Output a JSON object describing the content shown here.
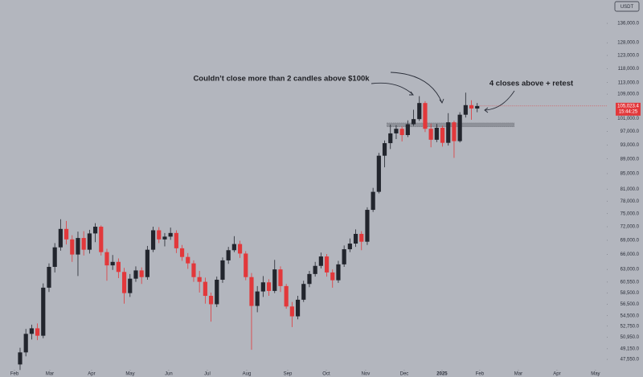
{
  "chart_data": {
    "type": "candlestick",
    "currency": "USDT",
    "scale": "log",
    "up_color": "#22252d",
    "down_color": "#e2383b",
    "annotations": [
      "Couldn’t close more than 2 candles above $100k",
      "4 closes above + retest"
    ],
    "ylim": [
      46260,
      146300
    ],
    "yticks": [
      {
        "value": 136000,
        "label": "136,000.0"
      },
      {
        "value": 128000,
        "label": "128,000.0"
      },
      {
        "value": 123000,
        "label": "123,000.0"
      },
      {
        "value": 118000,
        "label": "118,000.0"
      },
      {
        "value": 113000,
        "label": "113,000.0"
      },
      {
        "value": 109000,
        "label": "109,000.0"
      },
      {
        "value": 101000,
        "label": "101,000.0"
      },
      {
        "value": 97000,
        "label": "97,000.0"
      },
      {
        "value": 93000,
        "label": "93,000.0"
      },
      {
        "value": 89000,
        "label": "89,000.0"
      },
      {
        "value": 85000,
        "label": "85,000.0"
      },
      {
        "value": 81000,
        "label": "81,000.0"
      },
      {
        "value": 78000,
        "label": "78,000.0"
      },
      {
        "value": 75000,
        "label": "75,000.0"
      },
      {
        "value": 72000,
        "label": "72,000.0"
      },
      {
        "value": 69000,
        "label": "69,000.0"
      },
      {
        "value": 66000,
        "label": "66,000.0"
      },
      {
        "value": 63000,
        "label": "63,000.0"
      },
      {
        "value": 60550,
        "label": "60,550.0"
      },
      {
        "value": 58500,
        "label": "58,500.0"
      },
      {
        "value": 56500,
        "label": "56,500.0"
      },
      {
        "value": 54500,
        "label": "54,500.0"
      },
      {
        "value": 52750,
        "label": "52,750.0"
      },
      {
        "value": 50950,
        "label": "50,950.0"
      },
      {
        "value": 49150,
        "label": "49,150.0"
      },
      {
        "value": 47550,
        "label": "47,550.0"
      }
    ],
    "xlim": [
      -3.47,
      101.4
    ],
    "xticks": [
      {
        "value": -0.97,
        "label": "Feb"
      },
      {
        "value": 5.14,
        "label": "Mar"
      },
      {
        "value": 12.36,
        "label": "Apr"
      },
      {
        "value": 19.03,
        "label": "May"
      },
      {
        "value": 25.69,
        "label": "Jun"
      },
      {
        "value": 32.36,
        "label": "Jul"
      },
      {
        "value": 39.17,
        "label": "Aug"
      },
      {
        "value": 46.25,
        "label": "Sep"
      },
      {
        "value": 52.92,
        "label": "Oct"
      },
      {
        "value": 59.72,
        "label": "Nov"
      },
      {
        "value": 66.39,
        "label": "Dec"
      },
      {
        "value": 72.92,
        "label": "2025"
      },
      {
        "value": 79.44,
        "label": "Feb"
      },
      {
        "value": 86.11,
        "label": "Mar"
      },
      {
        "value": 92.78,
        "label": "Apr"
      },
      {
        "value": 99.44,
        "label": "May"
      }
    ],
    "open": [
      46800,
      48600,
      51500,
      52400,
      51200,
      59500,
      63500,
      67500,
      71500,
      69200,
      66000,
      69500,
      67000,
      70500,
      72000,
      66500,
      63800,
      64500,
      62500,
      58500,
      61200,
      62800,
      61500,
      67000,
      71200,
      69200,
      69800,
      70600,
      67300,
      65500,
      64200,
      61500,
      60600,
      58000,
      56500,
      61000,
      64800,
      66900,
      68200,
      66200,
      61500,
      56200,
      58800,
      60500,
      58900,
      63000,
      59800,
      56100,
      54400,
      57300,
      60200,
      62100,
      63700,
      65600,
      62400,
      60900,
      64000,
      67100,
      68300,
      70400,
      68700,
      75900,
      80300,
      89900,
      93500,
      96400,
      97800,
      95900,
      99200,
      100800,
      106000,
      97800,
      94500,
      98100,
      93600,
      99800,
      94100,
      102200,
      105300,
      104200
    ],
    "high": [
      49300,
      52300,
      53000,
      53200,
      60300,
      64200,
      68400,
      73700,
      73300,
      70100,
      70900,
      71000,
      71300,
      72800,
      72300,
      67200,
      65900,
      65200,
      63300,
      62100,
      63600,
      63400,
      67800,
      72000,
      71900,
      70600,
      71800,
      71200,
      68000,
      66300,
      64800,
      62700,
      61400,
      58600,
      61600,
      65400,
      67600,
      69900,
      68900,
      66700,
      62300,
      59800,
      61700,
      61100,
      64900,
      63600,
      60200,
      56900,
      58000,
      60800,
      62700,
      64500,
      66400,
      66100,
      63000,
      64700,
      67900,
      69400,
      71400,
      71000,
      76500,
      81300,
      90700,
      94300,
      99100,
      98900,
      98500,
      100400,
      103800,
      108300,
      106600,
      99400,
      99300,
      98700,
      102700,
      100300,
      103000,
      109500,
      106900,
      106000
    ],
    "low": [
      46000,
      48000,
      50600,
      50500,
      50800,
      58700,
      62400,
      66800,
      68100,
      64500,
      61700,
      65800,
      66200,
      68600,
      65800,
      60800,
      62900,
      61300,
      56600,
      57800,
      60600,
      60200,
      61000,
      66500,
      68400,
      67700,
      69100,
      66300,
      64700,
      63100,
      60600,
      58600,
      56600,
      53500,
      56000,
      60400,
      64100,
      66500,
      65300,
      60900,
      49000,
      55100,
      57800,
      58000,
      58500,
      58700,
      55700,
      52600,
      53900,
      56900,
      59600,
      61600,
      63200,
      61600,
      59500,
      60400,
      63500,
      66500,
      67600,
      66900,
      68000,
      75400,
      79900,
      86700,
      91800,
      94700,
      94000,
      95300,
      98700,
      100200,
      96800,
      92300,
      93800,
      92500,
      92800,
      89300,
      93700,
      101300,
      100600,
      103000
    ],
    "close": [
      48600,
      51500,
      52400,
      51200,
      59500,
      63500,
      67500,
      71500,
      69200,
      66000,
      69500,
      67000,
      70500,
      72000,
      66500,
      63800,
      64500,
      62500,
      58500,
      61200,
      62800,
      61500,
      67000,
      71200,
      69200,
      69800,
      70600,
      67300,
      65500,
      64200,
      61500,
      60600,
      58000,
      56500,
      61000,
      64800,
      66900,
      68200,
      66200,
      61500,
      56200,
      58800,
      60500,
      58900,
      63000,
      59800,
      56100,
      54400,
      57300,
      60200,
      62100,
      63700,
      65600,
      62400,
      60900,
      64000,
      67100,
      68300,
      70400,
      68700,
      75900,
      80300,
      89900,
      93500,
      96400,
      97800,
      95900,
      99200,
      100800,
      106000,
      97800,
      94500,
      98100,
      93600,
      99800,
      94100,
      102200,
      105300,
      104200,
      105023.4
    ],
    "zone": [
      98400,
      99600
    ],
    "last_price": {
      "value": 105023.4,
      "label": "105,023.4"
    },
    "countdown": "15:44:25"
  }
}
